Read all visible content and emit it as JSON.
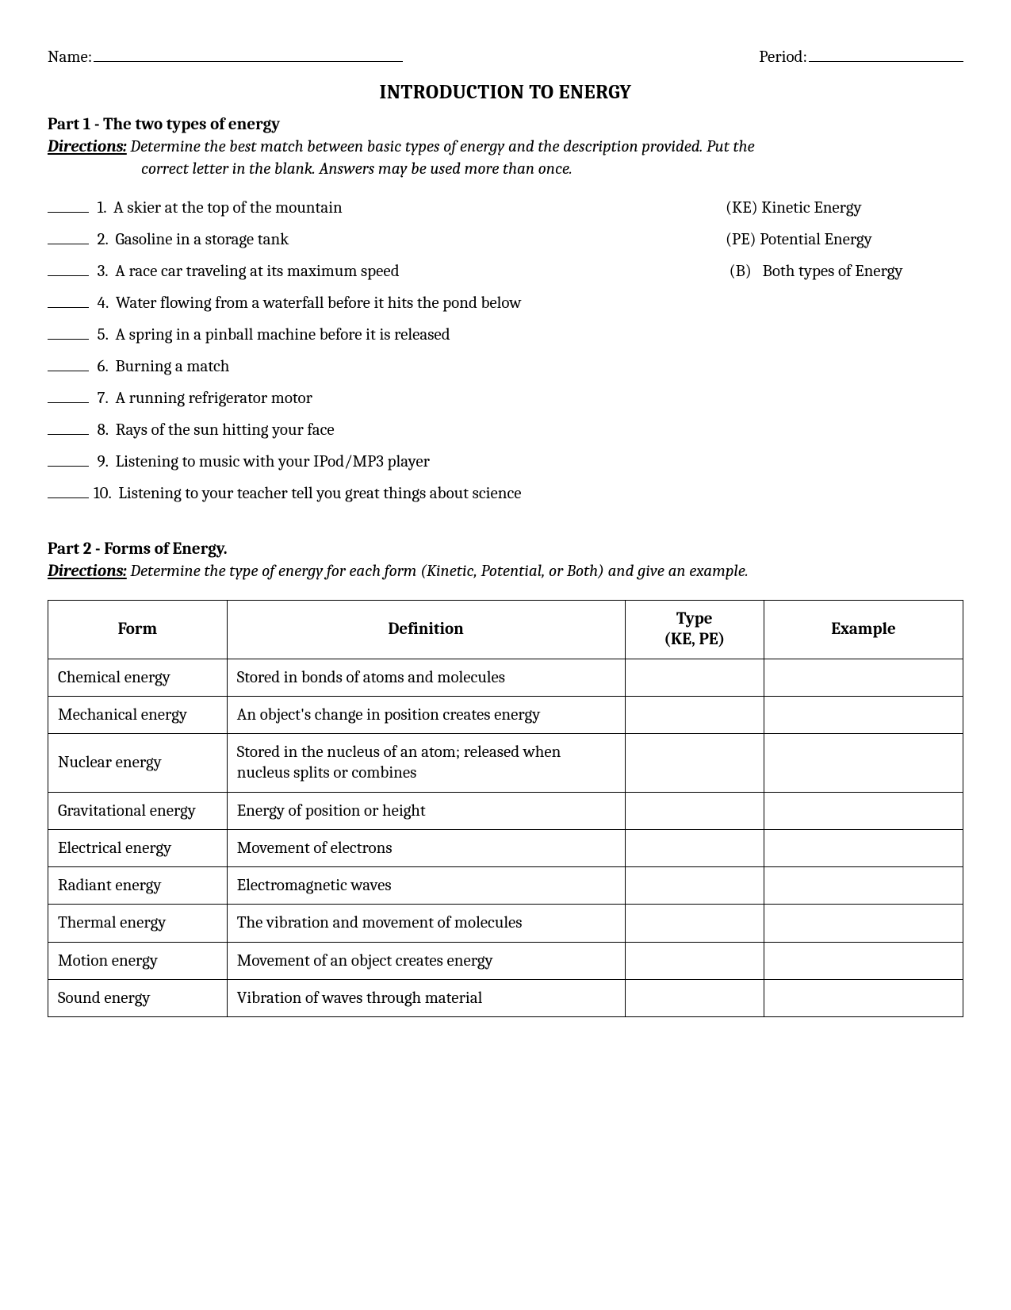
{
  "header": {
    "name_label": "Name:",
    "period_label": "Period:"
  },
  "title": "INTRODUCTION TO ENERGY",
  "part1": {
    "heading": "Part 1 - The two types of energy",
    "directions_label": "Directions:",
    "directions_text_line1": "  Determine the best match between basic types of energy and the description provided. Put the",
    "directions_text_line2": "correct letter in the blank. Answers may be used more than once.",
    "questions": [
      {
        "num": " 1.  ",
        "text": "A skier at the top of the mountain"
      },
      {
        "num": " 2.  ",
        "text": "Gasoline in a storage tank"
      },
      {
        "num": " 3.  ",
        "text": "A race car traveling at its maximum speed"
      },
      {
        "num": " 4.  ",
        "text": "Water flowing from a waterfall before it hits the pond below"
      },
      {
        "num": " 5.  ",
        "text": "A spring in a pinball machine before it is released"
      },
      {
        "num": " 6.  ",
        "text": "Burning a match"
      },
      {
        "num": " 7.  ",
        "text": "A running refrigerator motor"
      },
      {
        "num": " 8.  ",
        "text": "Rays of the sun hitting your face"
      },
      {
        "num": " 9.  ",
        "text": "Listening to music with your IPod/MP3 player"
      },
      {
        "num": "10.  ",
        "text": "Listening to your teacher tell you great things about science"
      }
    ],
    "key": [
      "(KE) Kinetic Energy",
      "(PE) Potential Energy",
      " (B)   Both types of Energy"
    ]
  },
  "part2": {
    "heading": "Part 2 - Forms of Energy.",
    "directions_label": "Directions:",
    "directions_text": "  Determine the type of energy for each form (Kinetic, Potential, or Both) and give an example.",
    "columns": [
      "Form",
      "Definition",
      "Type\n(KE, PE)",
      "Example"
    ],
    "rows": [
      {
        "form": "Chemical energy",
        "definition": "Stored in bonds of atoms and molecules"
      },
      {
        "form": "Mechanical energy",
        "definition": "An object's change in position creates energy"
      },
      {
        "form": "Nuclear energy",
        "definition": "Stored in the nucleus of an atom; released when nucleus splits or combines"
      },
      {
        "form": "Gravitational energy",
        "definition": "Energy of position or height"
      },
      {
        "form": "Electrical energy",
        "definition": "Movement of electrons"
      },
      {
        "form": "Radiant energy",
        "definition": "Electromagnetic waves"
      },
      {
        "form": "Thermal energy",
        "definition": "The vibration and movement of molecules"
      },
      {
        "form": "Motion energy",
        "definition": "Movement of an object creates energy"
      },
      {
        "form": "Sound energy",
        "definition": "Vibration of waves through material"
      }
    ]
  }
}
